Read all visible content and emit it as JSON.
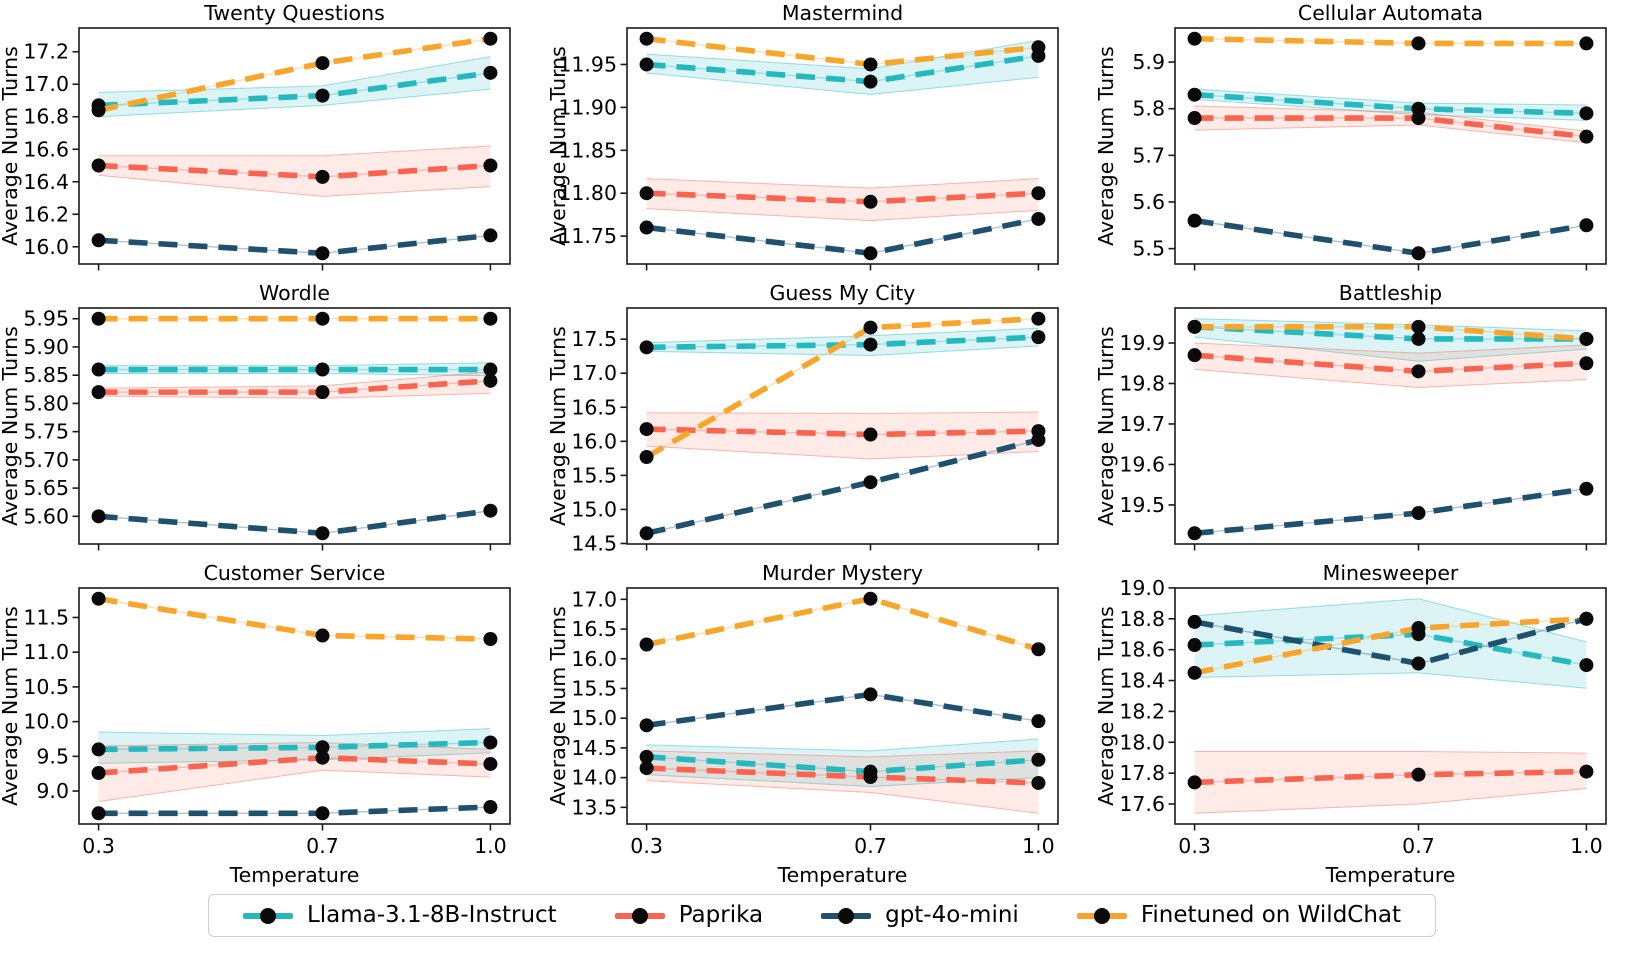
{
  "figure": {
    "xlabel": "Temperature",
    "ylabel": "Average Num Turns",
    "x_values": [
      0.3,
      0.7,
      1.0
    ],
    "x_tick_labels": [
      "0.3",
      "0.7",
      "1.0"
    ],
    "xlim": [
      0.265,
      1.035
    ]
  },
  "legend": {
    "items": [
      {
        "label": "Llama-3.1-8B-Instruct",
        "color": "#25b8bf"
      },
      {
        "label": "Paprika",
        "color": "#f96450"
      },
      {
        "label": "gpt-4o-mini",
        "color": "#1f516f"
      },
      {
        "label": "Finetuned on WildChat",
        "color": "#f8a62b"
      }
    ]
  },
  "chart_data": [
    {
      "type": "line",
      "title": "Twenty Questions",
      "ylabel": "Average Num Turns",
      "x": [
        0.3,
        0.7,
        1.0
      ],
      "ylim": [
        15.894,
        17.346
      ],
      "yticks": [
        16.0,
        16.2,
        16.4,
        16.6,
        16.8,
        17.0,
        17.2
      ],
      "ytick_labels": [
        "16.0",
        "16.2",
        "16.4",
        "16.6",
        "16.8",
        "17.0",
        "17.2"
      ],
      "show_x_labels": false,
      "series": [
        {
          "name": "Llama-3.1-8B-Instruct",
          "values": [
            16.87,
            16.93,
            17.07
          ],
          "band_lower": [
            16.8,
            16.87,
            16.97
          ],
          "band_upper": [
            16.95,
            16.99,
            17.17
          ]
        },
        {
          "name": "Paprika",
          "values": [
            16.5,
            16.43,
            16.5
          ],
          "band_lower": [
            16.44,
            16.31,
            16.37
          ],
          "band_upper": [
            16.56,
            16.56,
            16.62
          ]
        },
        {
          "name": "gpt-4o-mini",
          "values": [
            16.04,
            15.96,
            16.07
          ]
        },
        {
          "name": "Finetuned on WildChat",
          "values": [
            16.84,
            17.13,
            17.28
          ]
        }
      ]
    },
    {
      "type": "line",
      "title": "Mastermind",
      "ylabel": "Average Num Turns",
      "x": [
        0.3,
        0.7,
        1.0
      ],
      "ylim": [
        11.7175,
        11.9925
      ],
      "yticks": [
        11.75,
        11.8,
        11.85,
        11.9,
        11.95
      ],
      "ytick_labels": [
        "11.75",
        "11.80",
        "11.85",
        "11.90",
        "11.95"
      ],
      "show_x_labels": false,
      "series": [
        {
          "name": "Llama-3.1-8B-Instruct",
          "values": [
            11.95,
            11.93,
            11.96
          ],
          "band_lower": [
            11.94,
            11.915,
            11.935
          ],
          "band_upper": [
            11.962,
            11.945,
            11.978
          ]
        },
        {
          "name": "Paprika",
          "values": [
            11.8,
            11.79,
            11.8
          ],
          "band_lower": [
            11.782,
            11.768,
            11.78
          ],
          "band_upper": [
            11.817,
            11.806,
            11.817
          ]
        },
        {
          "name": "gpt-4o-mini",
          "values": [
            11.76,
            11.73,
            11.77
          ]
        },
        {
          "name": "Finetuned on WildChat",
          "values": [
            11.98,
            11.95,
            11.97
          ]
        }
      ]
    },
    {
      "type": "line",
      "title": "Cellular Automata",
      "ylabel": "Average Num Turns",
      "x": [
        0.3,
        0.7,
        1.0
      ],
      "ylim": [
        5.467,
        5.973
      ],
      "yticks": [
        5.5,
        5.6,
        5.7,
        5.8,
        5.9
      ],
      "ytick_labels": [
        "5.5",
        "5.6",
        "5.7",
        "5.8",
        "5.9"
      ],
      "show_x_labels": false,
      "series": [
        {
          "name": "Llama-3.1-8B-Instruct",
          "values": [
            5.83,
            5.8,
            5.79
          ],
          "band_lower": [
            5.82,
            5.787,
            5.775
          ],
          "band_upper": [
            5.842,
            5.812,
            5.808
          ]
        },
        {
          "name": "Paprika",
          "values": [
            5.78,
            5.78,
            5.74
          ],
          "band_lower": [
            5.754,
            5.765,
            5.727
          ],
          "band_upper": [
            5.806,
            5.792,
            5.752
          ]
        },
        {
          "name": "gpt-4o-mini",
          "values": [
            5.56,
            5.49,
            5.55
          ]
        },
        {
          "name": "Finetuned on WildChat",
          "values": [
            5.95,
            5.94,
            5.94
          ]
        }
      ]
    },
    {
      "type": "line",
      "title": "Wordle",
      "ylabel": "Average Num Turns",
      "x": [
        0.3,
        0.7,
        1.0
      ],
      "ylim": [
        5.551,
        5.969
      ],
      "yticks": [
        5.6,
        5.65,
        5.7,
        5.75,
        5.8,
        5.85,
        5.9,
        5.95
      ],
      "ytick_labels": [
        "5.60",
        "5.65",
        "5.70",
        "5.75",
        "5.80",
        "5.85",
        "5.90",
        "5.95"
      ],
      "show_x_labels": false,
      "series": [
        {
          "name": "Llama-3.1-8B-Instruct",
          "values": [
            5.86,
            5.86,
            5.86
          ],
          "band_lower": [
            5.853,
            5.853,
            5.849
          ],
          "band_upper": [
            5.867,
            5.867,
            5.872
          ]
        },
        {
          "name": "Paprika",
          "values": [
            5.82,
            5.82,
            5.84
          ],
          "band_lower": [
            5.813,
            5.809,
            5.818
          ],
          "band_upper": [
            5.827,
            5.831,
            5.856
          ]
        },
        {
          "name": "gpt-4o-mini",
          "values": [
            5.6,
            5.57,
            5.61
          ]
        },
        {
          "name": "Finetuned on WildChat",
          "values": [
            5.95,
            5.95,
            5.95
          ]
        }
      ]
    },
    {
      "type": "line",
      "title": "Guess My City",
      "ylabel": "Average Num Turns",
      "x": [
        0.3,
        0.7,
        1.0
      ],
      "ylim": [
        14.4925,
        17.9575
      ],
      "yticks": [
        14.5,
        15.0,
        15.5,
        16.0,
        16.5,
        17.0,
        17.5
      ],
      "ytick_labels": [
        "14.5",
        "15.0",
        "15.5",
        "16.0",
        "16.5",
        "17.0",
        "17.5"
      ],
      "show_x_labels": false,
      "series": [
        {
          "name": "Llama-3.1-8B-Instruct",
          "values": [
            17.38,
            17.42,
            17.53
          ],
          "band_lower": [
            17.32,
            17.26,
            17.4
          ],
          "band_upper": [
            17.45,
            17.55,
            17.66
          ]
        },
        {
          "name": "Paprika",
          "values": [
            16.18,
            16.1,
            16.15
          ],
          "band_lower": [
            15.93,
            15.74,
            15.85
          ],
          "band_upper": [
            16.42,
            16.41,
            16.43
          ]
        },
        {
          "name": "gpt-4o-mini",
          "values": [
            14.65,
            15.4,
            16.02
          ]
        },
        {
          "name": "Finetuned on WildChat",
          "values": [
            15.77,
            17.67,
            17.8
          ]
        }
      ]
    },
    {
      "type": "line",
      "title": "Battleship",
      "ylabel": "Average Num Turns",
      "x": [
        0.3,
        0.7,
        1.0
      ],
      "ylim": [
        19.4035,
        19.9865
      ],
      "yticks": [
        19.5,
        19.6,
        19.7,
        19.8,
        19.9
      ],
      "ytick_labels": [
        "19.5",
        "19.6",
        "19.7",
        "19.8",
        "19.9"
      ],
      "show_x_labels": false,
      "series": [
        {
          "name": "Llama-3.1-8B-Instruct",
          "values": [
            19.94,
            19.91,
            19.91
          ],
          "band_lower": [
            19.915,
            19.855,
            19.885
          ],
          "band_upper": [
            19.96,
            19.945,
            19.93
          ]
        },
        {
          "name": "Paprika",
          "values": [
            19.87,
            19.83,
            19.85
          ],
          "band_lower": [
            19.835,
            19.79,
            19.81
          ],
          "band_upper": [
            19.9,
            19.875,
            19.895
          ]
        },
        {
          "name": "gpt-4o-mini",
          "values": [
            19.43,
            19.48,
            19.54
          ]
        },
        {
          "name": "Finetuned on WildChat",
          "values": [
            19.94,
            19.94,
            19.91
          ]
        }
      ]
    },
    {
      "type": "line",
      "title": "Customer Service",
      "ylabel": "Average Num Turns",
      "xlabel": "Temperature",
      "x": [
        0.3,
        0.7,
        1.0
      ],
      "ylim": [
        8.5255,
        11.9245
      ],
      "yticks": [
        9.0,
        9.5,
        10.0,
        10.5,
        11.0,
        11.5
      ],
      "ytick_labels": [
        "9.0",
        "9.5",
        "10.0",
        "10.5",
        "11.0",
        "11.5"
      ],
      "show_x_labels": true,
      "series": [
        {
          "name": "Llama-3.1-8B-Instruct",
          "values": [
            9.6,
            9.63,
            9.7
          ],
          "band_lower": [
            9.4,
            9.45,
            9.55
          ],
          "band_upper": [
            9.85,
            9.8,
            9.9
          ]
        },
        {
          "name": "Paprika",
          "values": [
            9.26,
            9.48,
            9.39
          ],
          "band_lower": [
            8.85,
            9.3,
            9.2
          ],
          "band_upper": [
            9.65,
            9.7,
            9.6
          ]
        },
        {
          "name": "gpt-4o-mini",
          "values": [
            8.68,
            8.68,
            8.77
          ]
        },
        {
          "name": "Finetuned on WildChat",
          "values": [
            11.77,
            11.24,
            11.19
          ]
        }
      ]
    },
    {
      "type": "line",
      "title": "Murder Mystery",
      "ylabel": "Average Num Turns",
      "xlabel": "Temperature",
      "x": [
        0.3,
        0.7,
        1.0
      ],
      "ylim": [
        13.2195,
        17.1905
      ],
      "yticks": [
        13.5,
        14.0,
        14.5,
        15.0,
        15.5,
        16.0,
        16.5,
        17.0
      ],
      "ytick_labels": [
        "13.5",
        "14.0",
        "14.5",
        "15.0",
        "15.5",
        "16.0",
        "16.5",
        "17.0"
      ],
      "show_x_labels": true,
      "series": [
        {
          "name": "Llama-3.1-8B-Instruct",
          "values": [
            14.35,
            14.1,
            14.3
          ],
          "band_lower": [
            14.05,
            13.85,
            14.0
          ],
          "band_upper": [
            14.55,
            14.45,
            14.65
          ]
        },
        {
          "name": "Paprika",
          "values": [
            14.16,
            14.01,
            13.91
          ],
          "band_lower": [
            13.95,
            13.75,
            13.4
          ],
          "band_upper": [
            14.45,
            14.35,
            14.45
          ]
        },
        {
          "name": "gpt-4o-mini",
          "values": [
            14.88,
            15.4,
            14.95
          ]
        },
        {
          "name": "Finetuned on WildChat",
          "values": [
            16.24,
            17.01,
            16.16
          ]
        }
      ]
    },
    {
      "type": "line",
      "title": "Minesweeper",
      "ylabel": "Average Num Turns",
      "xlabel": "Temperature",
      "x": [
        0.3,
        0.7,
        1.0
      ],
      "ylim": [
        17.4705,
        18.9995
      ],
      "yticks": [
        17.6,
        17.8,
        18.0,
        18.2,
        18.4,
        18.6,
        18.8,
        19.0
      ],
      "ytick_labels": [
        "17.6",
        "17.8",
        "18.0",
        "18.2",
        "18.4",
        "18.6",
        "18.8",
        "19.0"
      ],
      "show_x_labels": true,
      "series": [
        {
          "name": "Llama-3.1-8B-Instruct",
          "values": [
            18.63,
            18.7,
            18.5
          ],
          "band_lower": [
            18.42,
            18.45,
            18.35
          ],
          "band_upper": [
            18.82,
            18.93,
            18.65
          ]
        },
        {
          "name": "Paprika",
          "values": [
            17.74,
            17.79,
            17.81
          ],
          "band_lower": [
            17.54,
            17.6,
            17.7
          ],
          "band_upper": [
            17.94,
            17.94,
            17.93
          ]
        },
        {
          "name": "gpt-4o-mini",
          "values": [
            18.78,
            18.51,
            18.8
          ]
        },
        {
          "name": "Finetuned on WildChat",
          "values": [
            18.45,
            18.74,
            18.8
          ]
        }
      ]
    }
  ]
}
